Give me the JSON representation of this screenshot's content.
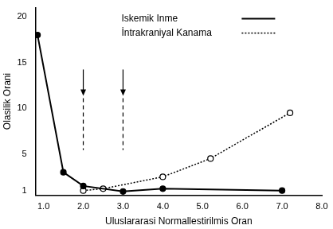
{
  "chart_data": {
    "type": "line",
    "x_label": "Uluslararasi Normallestirilmis Oran",
    "y_label": "Olasilik Orani",
    "series": [
      {
        "name": "Iskemik Inme",
        "color": "#000000",
        "line_style": "solid",
        "marker": "filled",
        "x": [
          0.85,
          1.5,
          2.0,
          3.0,
          4.0,
          7.0
        ],
        "values": [
          18,
          3,
          1.5,
          0.9,
          1.2,
          1.0
        ]
      },
      {
        "name": "İntrakraniyal Kanama",
        "color": "#000000",
        "line_style": "dotted",
        "marker": "open",
        "x": [
          2.0,
          2.5,
          4.0,
          5.2,
          7.2
        ],
        "values": [
          1.0,
          1.2,
          2.5,
          4.5,
          9.5
        ]
      }
    ],
    "annotations": [
      {
        "type": "arrow",
        "x": 2.0
      },
      {
        "type": "arrow",
        "x": 3.0
      }
    ],
    "xlim": [
      0.8,
      8.0
    ],
    "xticks": [
      {
        "value": 1,
        "label": "1.0"
      },
      {
        "value": 2,
        "label": "2.0"
      },
      {
        "value": 3,
        "label": "3.0"
      },
      {
        "value": 4,
        "label": "4.0"
      },
      {
        "value": 5,
        "label": "5.0"
      },
      {
        "value": 6,
        "label": "6.0"
      },
      {
        "value": 7,
        "label": "7.0"
      },
      {
        "value": 8,
        "label": "8.0"
      }
    ],
    "ylim": [
      0.5,
      21
    ],
    "yticks": [
      1,
      5,
      10,
      15,
      20
    ],
    "legend": "top",
    "grid": false
  }
}
